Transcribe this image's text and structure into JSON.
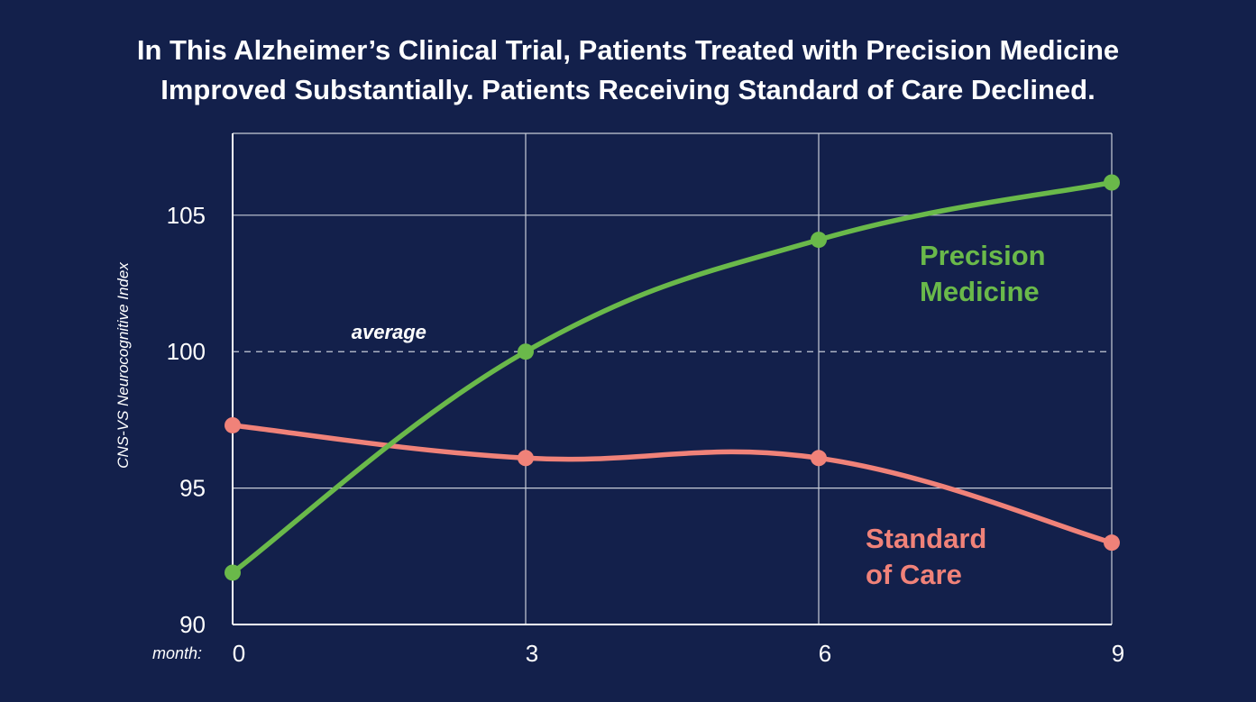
{
  "chart_data": {
    "type": "line",
    "title_lines": [
      "In This Alzheimer’s Clinical Trial, Patients Treated with Precision Medicine",
      "Improved Substantially. Patients Receiving Standard of Care Declined."
    ],
    "ylabel": "CNS-VS Neurocognitive Index",
    "xlabel": "month:",
    "x": [
      0,
      3,
      6,
      9
    ],
    "x_ticks": [
      "0",
      "3",
      "6",
      "9"
    ],
    "y_ticks": [
      90,
      95,
      100,
      105
    ],
    "ylim": [
      90,
      108
    ],
    "xlim": [
      0,
      9
    ],
    "grid": true,
    "reference_line": {
      "value": 100,
      "label": "average",
      "style": "dashed"
    },
    "series": [
      {
        "name_lines": [
          "Precision",
          "Medicine"
        ],
        "color": "#6ab94a",
        "values": [
          91.9,
          100,
          104.1,
          106.2
        ]
      },
      {
        "name_lines": [
          "Standard",
          "of Care"
        ],
        "color": "#f08279",
        "values": [
          97.3,
          96.1,
          96.1,
          93.0
        ]
      }
    ]
  },
  "colors": {
    "background": "#13204b",
    "grid": "#c7ccd8",
    "text": "#ffffff"
  }
}
